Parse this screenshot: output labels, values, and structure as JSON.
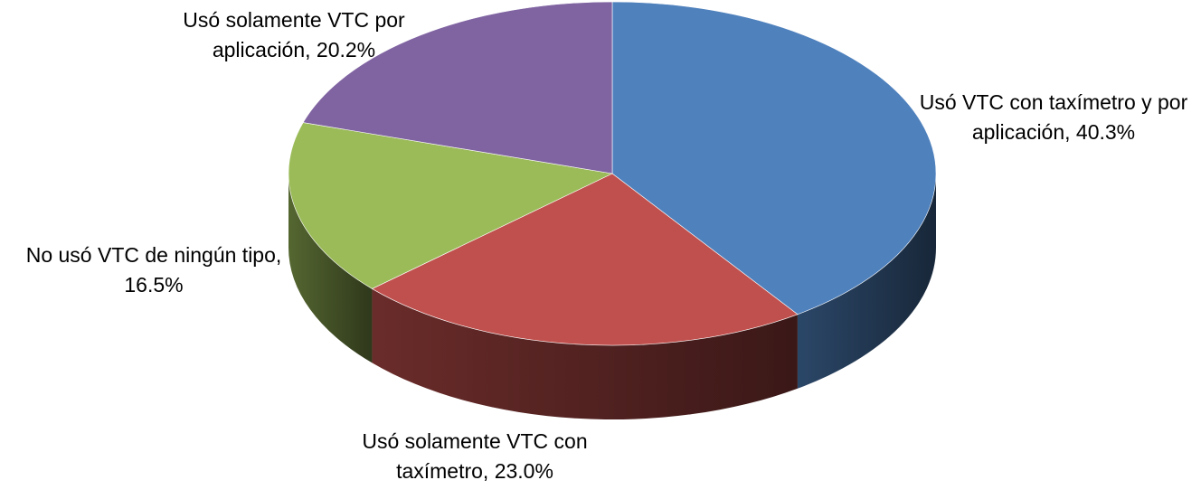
{
  "chart_data": {
    "type": "pie",
    "3d": true,
    "categories": [
      "Usó VTC con taxímetro y por aplicación",
      "Usó solamente VTC con taxímetro",
      "No usó VTC de ningún tipo",
      "Usó solamente VTC por aplicación"
    ],
    "values": [
      40.3,
      23.0,
      16.5,
      20.2
    ],
    "value_labels": [
      "Usó VTC con taxímetro y por aplicación, 40.3%",
      "Usó solamente VTC con taxímetro, 23.0%",
      "No usó VTC de ningún tipo, 16.5%",
      "Usó solamente VTC por aplicación, 20.2%"
    ],
    "colors": [
      "#4f81bd",
      "#c0504d",
      "#9bbb59",
      "#8064a2"
    ]
  }
}
